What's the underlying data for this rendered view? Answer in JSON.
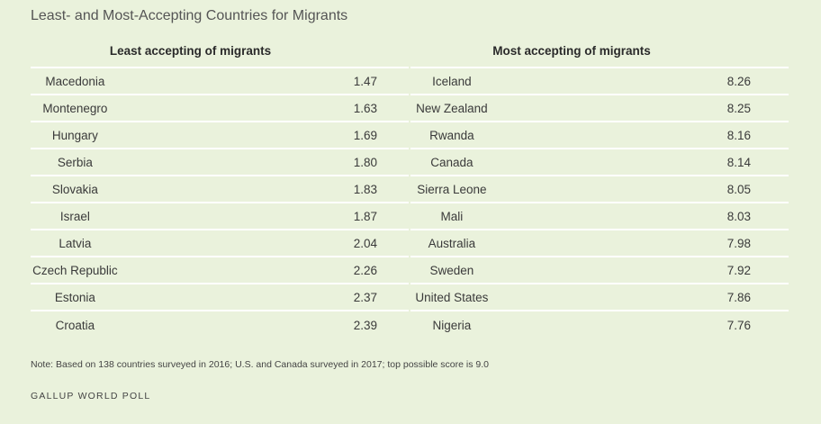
{
  "title": "Least- and Most-Accepting Countries for Migrants",
  "note": "Note: Based on 138 countries surveyed in 2016; U.S. and Canada surveyed in 2017; top possible score is 9.0",
  "source": "GALLUP WORLD POLL",
  "chart_data": {
    "type": "table",
    "title": "Least- and Most-Accepting Countries for Migrants",
    "tables": [
      {
        "header": "Least accepting of migrants",
        "rows": [
          {
            "country": "Macedonia",
            "score": "1.47"
          },
          {
            "country": "Montenegro",
            "score": "1.63"
          },
          {
            "country": "Hungary",
            "score": "1.69"
          },
          {
            "country": "Serbia",
            "score": "1.80"
          },
          {
            "country": "Slovakia",
            "score": "1.83"
          },
          {
            "country": "Israel",
            "score": "1.87"
          },
          {
            "country": "Latvia",
            "score": "2.04"
          },
          {
            "country": "Czech Republic",
            "score": "2.26"
          },
          {
            "country": "Estonia",
            "score": "2.37"
          },
          {
            "country": "Croatia",
            "score": "2.39"
          }
        ]
      },
      {
        "header": "Most accepting of migrants",
        "rows": [
          {
            "country": "Iceland",
            "score": "8.26"
          },
          {
            "country": "New Zealand",
            "score": "8.25"
          },
          {
            "country": "Rwanda",
            "score": "8.16"
          },
          {
            "country": "Canada",
            "score": "8.14"
          },
          {
            "country": "Sierra Leone",
            "score": "8.05"
          },
          {
            "country": "Mali",
            "score": "8.03"
          },
          {
            "country": "Australia",
            "score": "7.98"
          },
          {
            "country": "Sweden",
            "score": "7.92"
          },
          {
            "country": "United States",
            "score": "7.86"
          },
          {
            "country": "Nigeria",
            "score": "7.76"
          }
        ]
      }
    ]
  }
}
